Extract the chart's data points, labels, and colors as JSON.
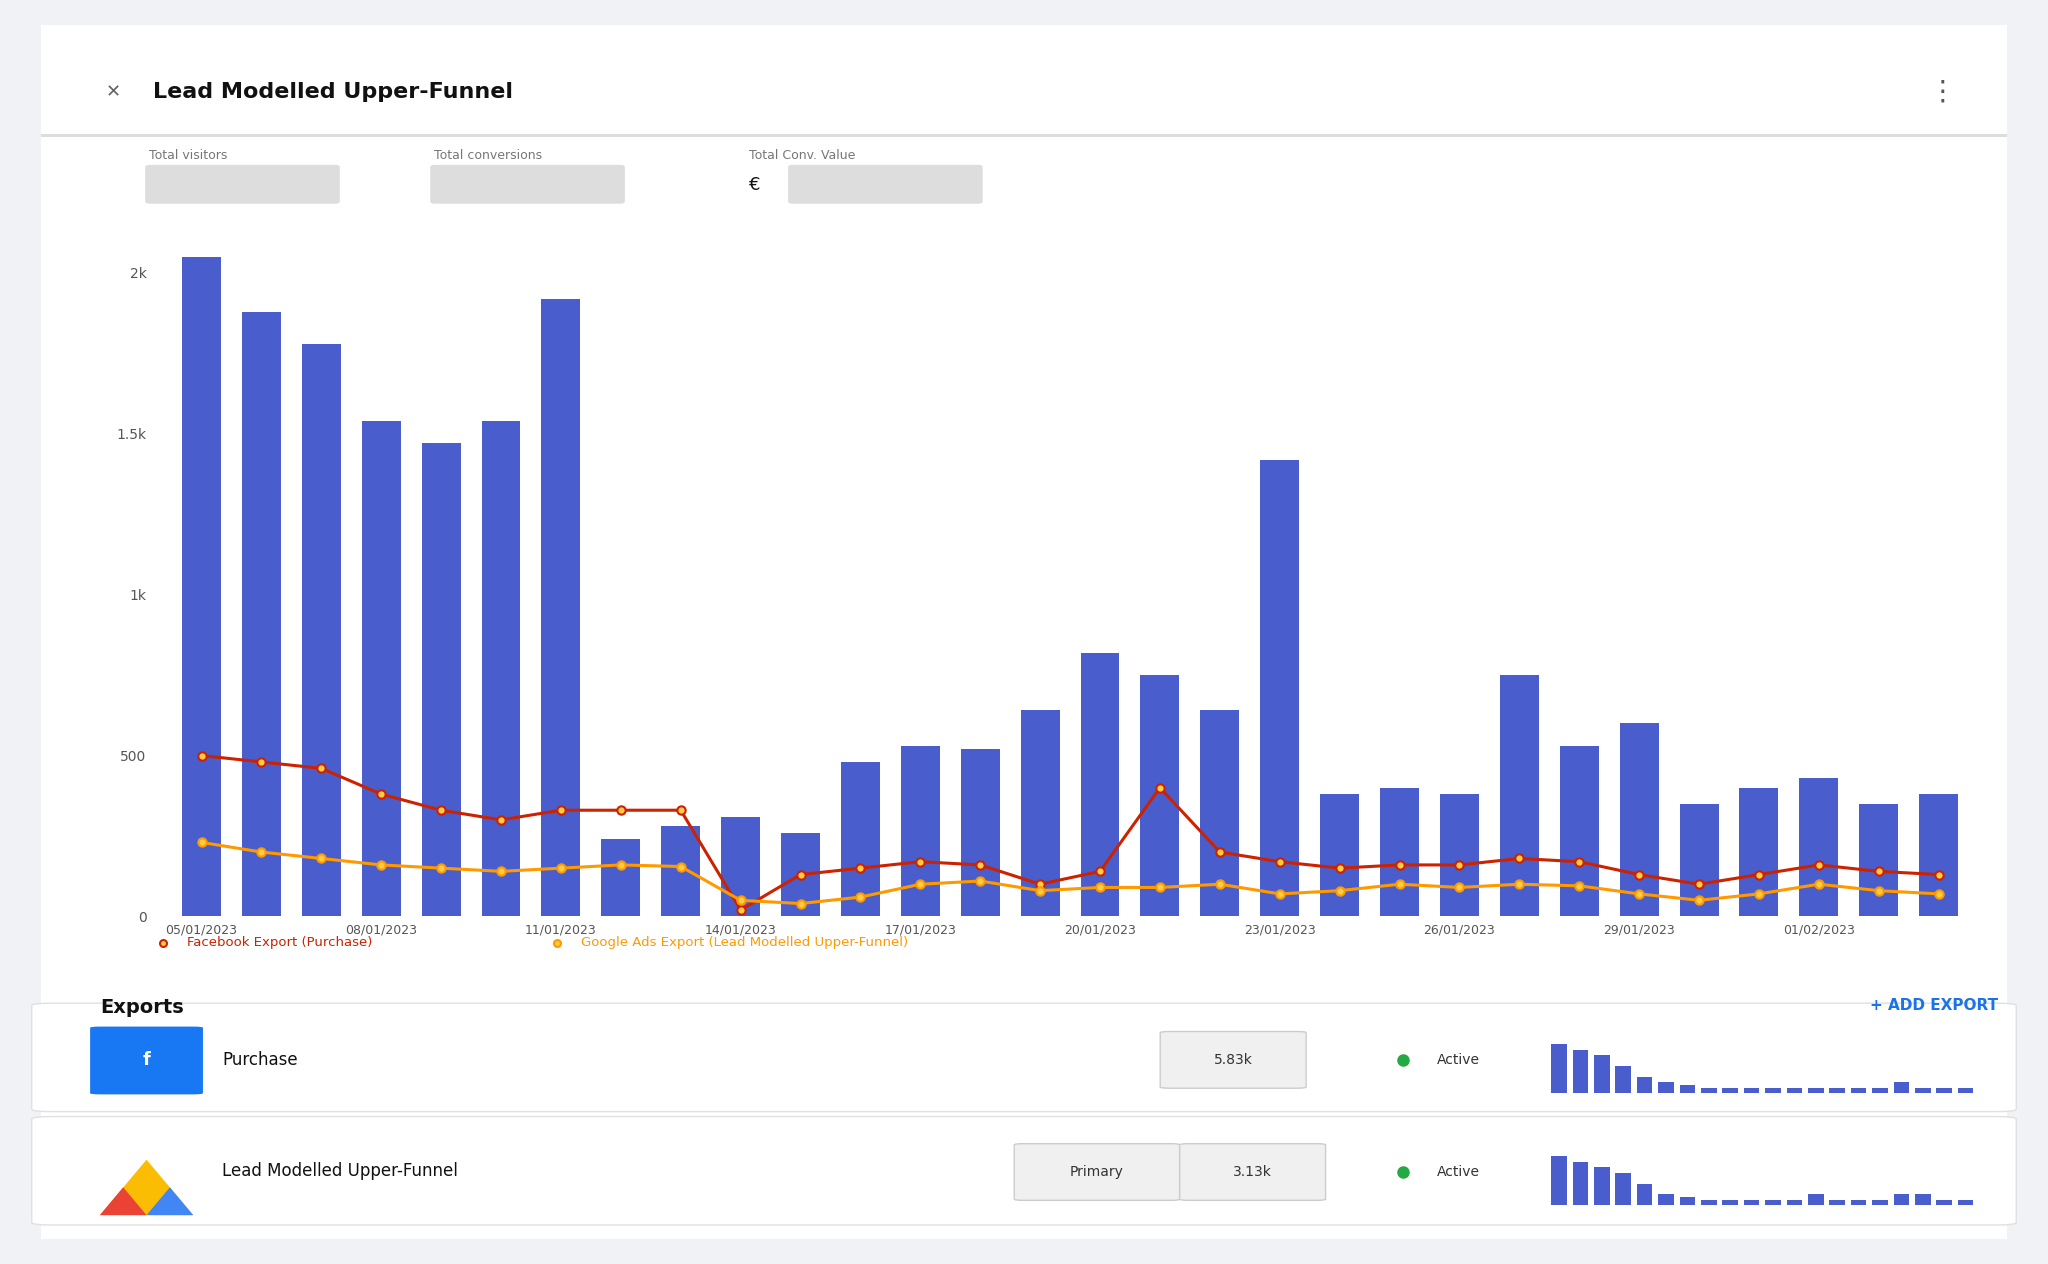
{
  "title": "Lead Modelled Upper-Funnel",
  "bg_color": "#f0f2f5",
  "card_color": "#ffffff",
  "bar_color": "#4a5dcc",
  "x_labels": [
    "05/01/2023",
    "08/01/2023",
    "11/01/2023",
    "14/01/2023",
    "17/01/2023",
    "20/01/2023",
    "23/01/2023",
    "26/01/2023",
    "29/01/2023",
    "01/02/2023"
  ],
  "bar_values": [
    2050,
    1880,
    1780,
    1540,
    1470,
    1540,
    1920,
    240,
    280,
    310,
    260,
    480,
    530,
    520,
    640,
    820,
    750,
    640,
    1420,
    380,
    400,
    380,
    750,
    530,
    600,
    350,
    400,
    430,
    350,
    380
  ],
  "facebook_line": [
    500,
    480,
    460,
    380,
    330,
    300,
    330,
    330,
    330,
    20,
    130,
    150,
    170,
    160,
    100,
    140,
    400,
    200,
    170,
    150,
    160,
    160,
    180,
    170,
    130,
    100,
    130,
    160,
    140,
    130
  ],
  "google_line": [
    230,
    200,
    180,
    160,
    150,
    140,
    150,
    160,
    155,
    50,
    40,
    60,
    100,
    110,
    80,
    90,
    90,
    100,
    70,
    80,
    100,
    90,
    100,
    95,
    70,
    50,
    70,
    100,
    80,
    70
  ],
  "facebook_color": "#cc2200",
  "google_color": "#ff9900",
  "marker_color": "#ffcc44",
  "ytick_labels": [
    "0",
    "500",
    "1k",
    "1.5k",
    "2k"
  ],
  "ytick_values": [
    0,
    500,
    1000,
    1500,
    2000
  ],
  "ylim": [
    0,
    2200
  ],
  "legend_facebook": "Facebook Export (Purchase)",
  "legend_google": "Google Ads Export (Lead Modelled Upper-Funnel)",
  "stat_labels": [
    "Total visitors",
    "Total conversions",
    "Total Conv. Value"
  ],
  "euro_symbol": "€",
  "exports_title": "Exports",
  "add_export_text": "+ ADD EXPORT",
  "export1_name": "Purchase",
  "export1_badge": "5.83k",
  "export1_status": "Active",
  "export2_name": "Lead Modelled Upper-Funnel",
  "export2_badge1": "Primary",
  "export2_badge2": "3.13k",
  "export2_status": "Active",
  "mini_bars_1": [
    0.9,
    0.8,
    0.7,
    0.5,
    0.3,
    0.2,
    0.15,
    0.1,
    0.1,
    0.1,
    0.1,
    0.1,
    0.1,
    0.1,
    0.1,
    0.1,
    0.2,
    0.1,
    0.1,
    0.1
  ],
  "mini_bars_2": [
    0.9,
    0.8,
    0.7,
    0.6,
    0.4,
    0.2,
    0.15,
    0.1,
    0.1,
    0.1,
    0.1,
    0.1,
    0.2,
    0.1,
    0.1,
    0.1,
    0.2,
    0.2,
    0.1,
    0.1
  ]
}
